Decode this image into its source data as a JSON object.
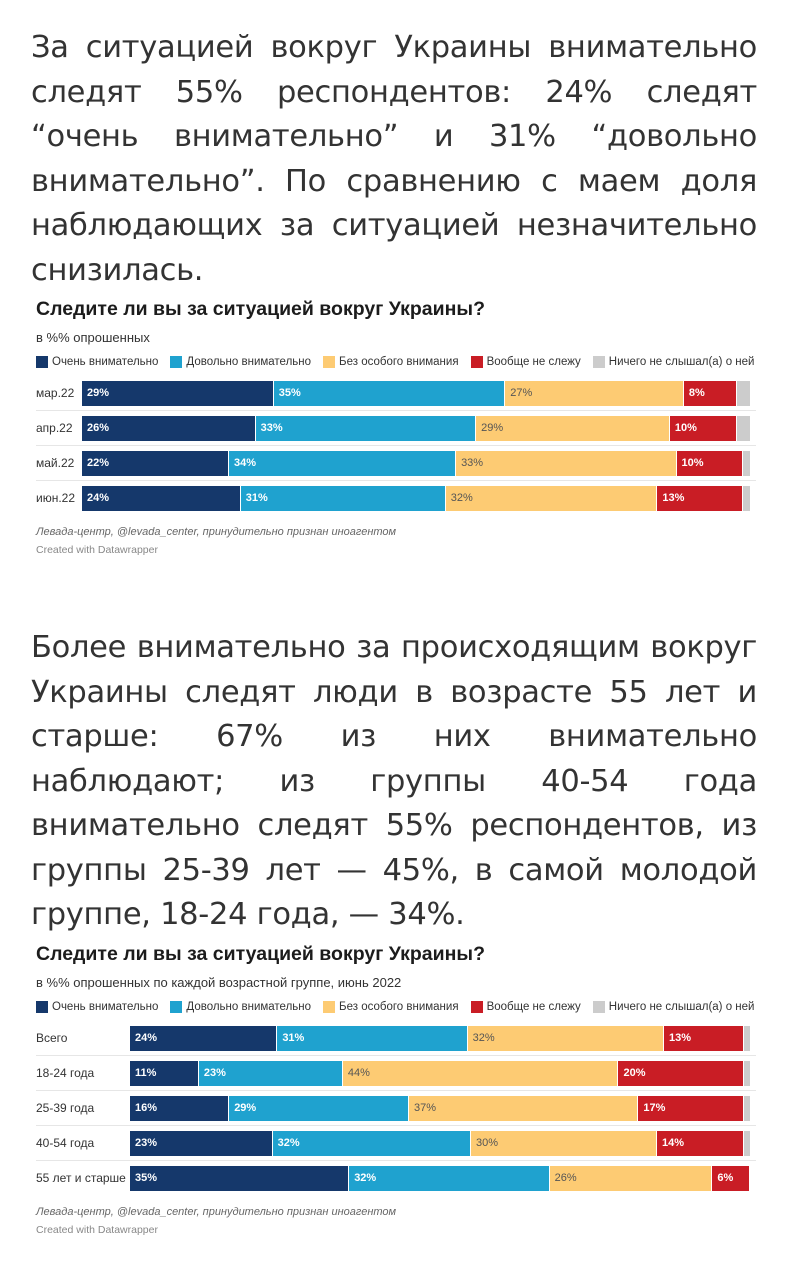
{
  "paragraphs": [
    "За ситуацией вокруг Украины внимательно следят 55% респондентов: 24% следят “очень внимательно” и 31% “довольно внимательно”. По сравнению с маем доля наблюдающих за ситуацией незначительно снизилась.",
    "Более внимательно за происходящим вокруг Украины следят люди в возрасте 55 лет и старше: 67% из них внимательно наблюдают; из группы 40-54 года внимательно следят 55% респондентов, из группы 25-39 лет — 45%, в самой молодой группе, 18-24 года, — 34%."
  ],
  "legend": [
    {
      "label": "Очень внимательно",
      "color": "#15386b"
    },
    {
      "label": "Довольно внимательно",
      "color": "#1fa2cf"
    },
    {
      "label": "Без особого внимания",
      "color": "#fdcb73"
    },
    {
      "label": "Вообще не слежу",
      "color": "#c91d25"
    },
    {
      "label": "Ничего не слышал(а) о ней",
      "color": "#cccccc"
    }
  ],
  "chart_data": [
    {
      "type": "bar",
      "orientation": "horizontal-stacked",
      "title": "Следите ли вы за ситуацией вокруг Украины?",
      "subtitle": "в %% опрошенных",
      "categories": [
        "мар.22",
        "апр.22",
        "май.22",
        "июн.22"
      ],
      "series": [
        {
          "name": "Очень внимательно",
          "values": [
            29,
            26,
            22,
            24
          ]
        },
        {
          "name": "Довольно внимательно",
          "values": [
            35,
            33,
            34,
            31
          ]
        },
        {
          "name": "Без особого внимания",
          "values": [
            27,
            29,
            33,
            32
          ]
        },
        {
          "name": "Вообще не слежу",
          "values": [
            8,
            10,
            10,
            13
          ]
        },
        {
          "name": "Ничего не слышал(а) о ней",
          "values": [
            2,
            2,
            1,
            1
          ]
        }
      ],
      "source": "Левада-центр, @levada_center, принудительно признан иноагентом",
      "credit": "Created with Datawrapper"
    },
    {
      "type": "bar",
      "orientation": "horizontal-stacked",
      "title": "Следите ли вы за ситуацией вокруг Украины?",
      "subtitle": "в %% опрошенных по каждой возрастной группе, июнь 2022",
      "categories": [
        "Всего",
        "18-24 года",
        "25-39 года",
        "40-54 года",
        "55 лет и старше"
      ],
      "series": [
        {
          "name": "Очень внимательно",
          "values": [
            24,
            11,
            16,
            23,
            35
          ]
        },
        {
          "name": "Довольно внимательно",
          "values": [
            31,
            23,
            29,
            32,
            32
          ]
        },
        {
          "name": "Без особого внимания",
          "values": [
            32,
            44,
            37,
            30,
            26
          ]
        },
        {
          "name": "Вообще не слежу",
          "values": [
            13,
            20,
            17,
            14,
            6
          ]
        },
        {
          "name": "Ничего не слышал(а) о ней",
          "values": [
            1,
            1,
            1,
            1,
            0
          ]
        }
      ],
      "source": "Левада-центр, @levada_center, принудительно признан иноагентом",
      "credit": "Created with Datawrapper"
    }
  ]
}
